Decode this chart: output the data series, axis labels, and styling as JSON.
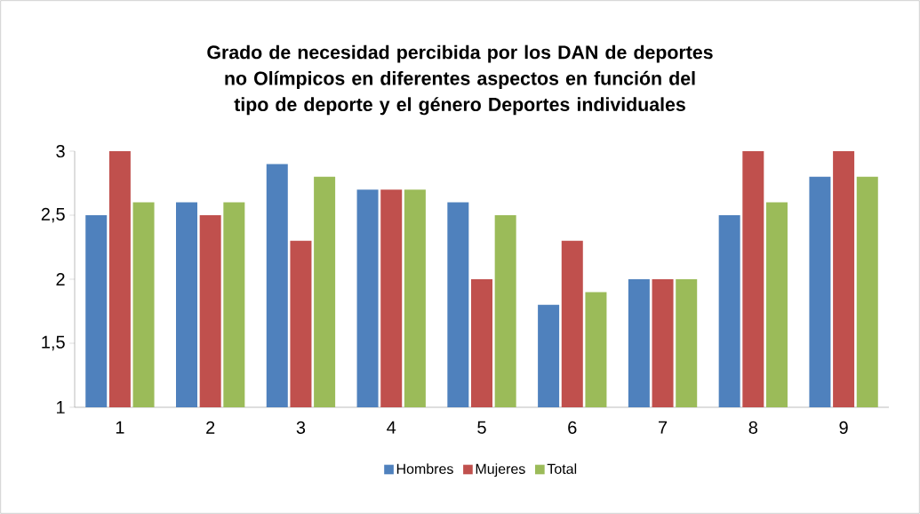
{
  "chart_data": {
    "type": "bar",
    "title": "Grado de necesidad percibida por los DAN de deportes no Olímpicos en diferentes aspectos en función del tipo de deporte y el género Deportes individuales",
    "categories": [
      "1",
      "2",
      "3",
      "4",
      "5",
      "6",
      "7",
      "8",
      "9"
    ],
    "series": [
      {
        "name": "Hombres",
        "color": "#4f81bd",
        "values": [
          2.5,
          2.6,
          2.9,
          2.7,
          2.6,
          1.8,
          2.0,
          2.5,
          2.8
        ]
      },
      {
        "name": "Mujeres",
        "color": "#c0504d",
        "values": [
          3.0,
          2.5,
          2.3,
          2.7,
          2.0,
          2.3,
          2.0,
          3.0,
          3.0
        ]
      },
      {
        "name": "Total",
        "color": "#9bbb59",
        "values": [
          2.6,
          2.6,
          2.8,
          2.7,
          2.5,
          1.9,
          2.0,
          2.6,
          2.8
        ]
      }
    ],
    "ylim": [
      1,
      3
    ],
    "yticks": [
      1,
      {
        "value": 1.5,
        "label": "1,5"
      },
      2,
      {
        "value": 2.5,
        "label": "2,5"
      },
      3
    ],
    "legend": "bottom"
  }
}
